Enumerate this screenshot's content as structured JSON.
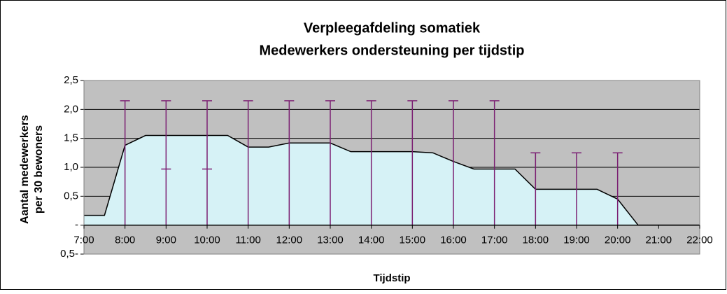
{
  "chart_data": {
    "type": "area",
    "title": "Verpleegafdeling somatiek",
    "subtitle": "Medewerkers ondersteuning per tijdstip",
    "y_label": [
      "Aantal medewerkers",
      "per 30 bewoners"
    ],
    "x_label": "Tijdstip",
    "x": [
      7,
      7.5,
      8,
      8.5,
      9,
      10,
      10.5,
      11,
      11.5,
      12,
      13,
      13.5,
      14,
      15,
      15.5,
      16,
      16.5,
      17,
      17.5,
      18,
      18.5,
      19,
      19.5,
      20,
      20.5,
      21,
      22
    ],
    "values": [
      0.17,
      0.17,
      1.38,
      1.55,
      1.55,
      1.55,
      1.55,
      1.35,
      1.35,
      1.42,
      1.42,
      1.27,
      1.27,
      1.27,
      1.25,
      1.1,
      0.97,
      0.97,
      0.97,
      0.62,
      0.62,
      0.62,
      0.62,
      0.45,
      0,
      0,
      0
    ],
    "color": "#d6f2f6",
    "line_color": "#000000",
    "error_bars": {
      "color": "#7b1f72",
      "x": [
        8,
        9,
        10,
        11,
        12,
        13,
        14,
        15,
        16,
        17,
        18,
        19,
        20
      ],
      "high": [
        2.15,
        2.15,
        2.15,
        2.15,
        2.15,
        2.15,
        2.15,
        2.15,
        2.15,
        2.15,
        1.25,
        1.25,
        1.25
      ],
      "low": [
        null,
        0.97,
        0.97,
        null,
        null,
        null,
        null,
        null,
        null,
        null,
        null,
        null,
        null
      ]
    },
    "xlim": [
      7,
      22
    ],
    "xticks": [
      {
        "value": 7,
        "label": "7:00"
      },
      {
        "value": 8,
        "label": "8:00"
      },
      {
        "value": 9,
        "label": "9:00"
      },
      {
        "value": 10,
        "label": "10:00"
      },
      {
        "value": 11,
        "label": "11:00"
      },
      {
        "value": 12,
        "label": "12:00"
      },
      {
        "value": 13,
        "label": "13:00"
      },
      {
        "value": 14,
        "label": "14:00"
      },
      {
        "value": 15,
        "label": "15:00"
      },
      {
        "value": 16,
        "label": "16:00"
      },
      {
        "value": 17,
        "label": "17:00"
      },
      {
        "value": 18,
        "label": "18:00"
      },
      {
        "value": 19,
        "label": "19:00"
      },
      {
        "value": 20,
        "label": "20:00"
      },
      {
        "value": 21,
        "label": "21:00"
      },
      {
        "value": 22,
        "label": "22:00"
      }
    ],
    "ylim": [
      -0.5,
      2.5
    ],
    "yticks": [
      {
        "value": -0.5,
        "label": "0,5-"
      },
      {
        "value": 0,
        "label": "-"
      },
      {
        "value": 0.5,
        "label": "0,5"
      },
      {
        "value": 1,
        "label": "1,0"
      },
      {
        "value": 1.5,
        "label": "1,5"
      },
      {
        "value": 2,
        "label": "2,0"
      },
      {
        "value": 2.5,
        "label": "2,5"
      }
    ],
    "grid": true,
    "plot_background": "#c0c0c0"
  }
}
